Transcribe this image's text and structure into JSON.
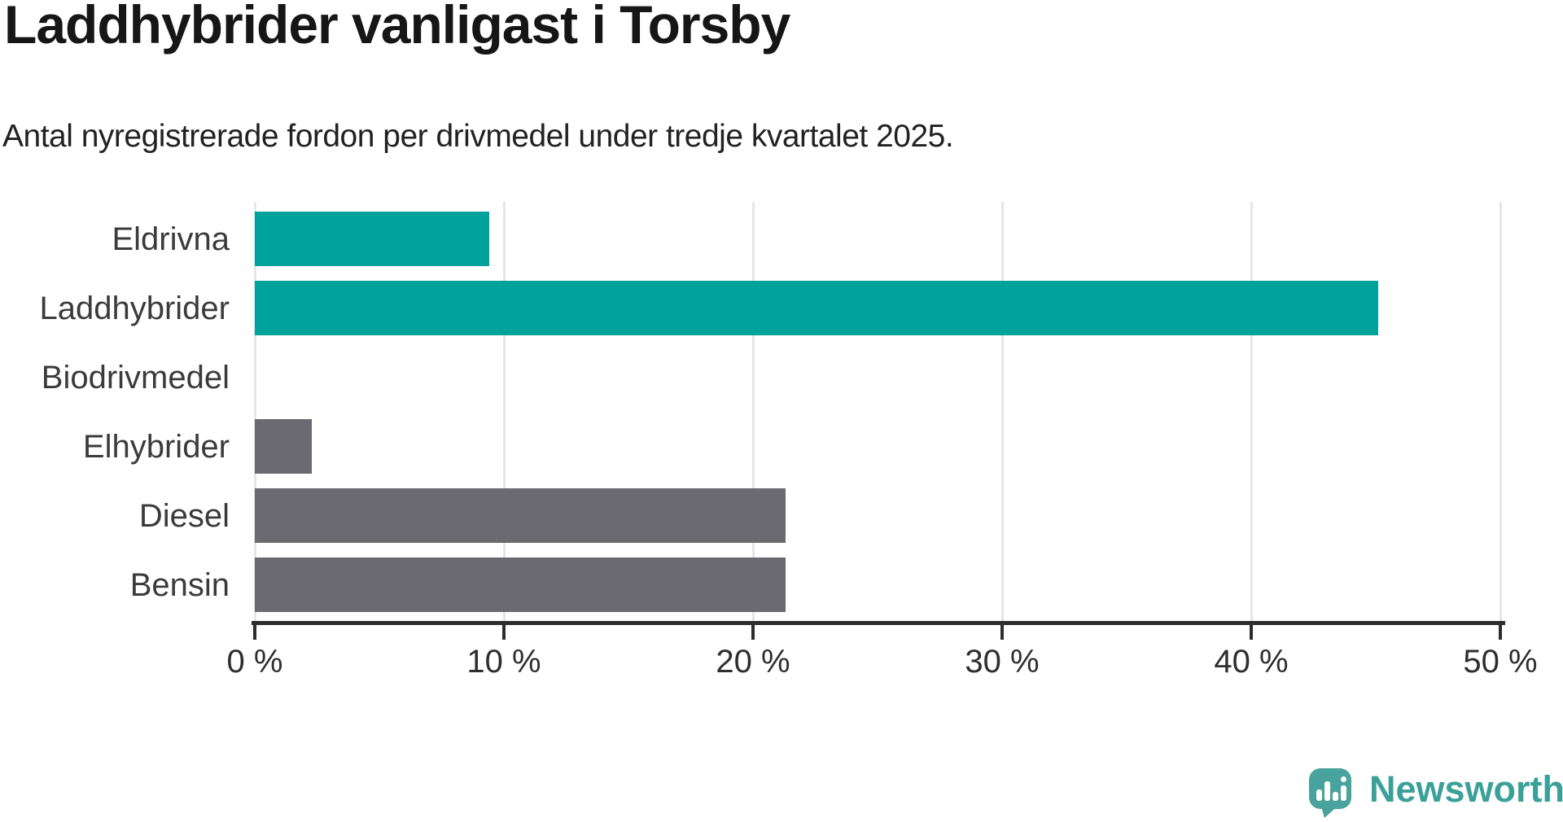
{
  "title": "Laddhybrider vanligast i Torsby",
  "subtitle": "Antal nyregistrerade fordon per drivmedel under tredje kvartalet 2025.",
  "chart_data": {
    "type": "bar",
    "orientation": "horizontal",
    "title": "Laddhybrider vanligast i Torsby",
    "subtitle": "Antal nyregistrerade fordon per drivmedel under tredje kvartalet 2025.",
    "categories": [
      "Eldrivna",
      "Laddhybrider",
      "Biodrivmedel",
      "Elhybrider",
      "Diesel",
      "Bensin"
    ],
    "values": [
      9.4,
      45.1,
      0,
      2.3,
      21.3,
      21.3
    ],
    "unit": "%",
    "xlim": [
      0,
      50
    ],
    "x_ticks": [
      "0 %",
      "10 %",
      "20 %",
      "30 %",
      "40 %",
      "50 %"
    ],
    "grid": true,
    "legend": false,
    "bar_colors": [
      "#00a39c",
      "#00a39c",
      "#00a39c",
      "#6a6a70",
      "#6a6a70",
      "#6a6a70"
    ],
    "colors": {
      "teal_bar": "#00a39c",
      "gray_bar": "#6a6a70",
      "gridline": "#e6e6e6",
      "axis_line": "#2d2d2d",
      "label_text": "#3b3b3f"
    }
  },
  "branding": {
    "logo_text": "Newsworthy",
    "logo_color": "#3ba198",
    "logo_icon": "speech-bubble-bar-chart-icon"
  }
}
